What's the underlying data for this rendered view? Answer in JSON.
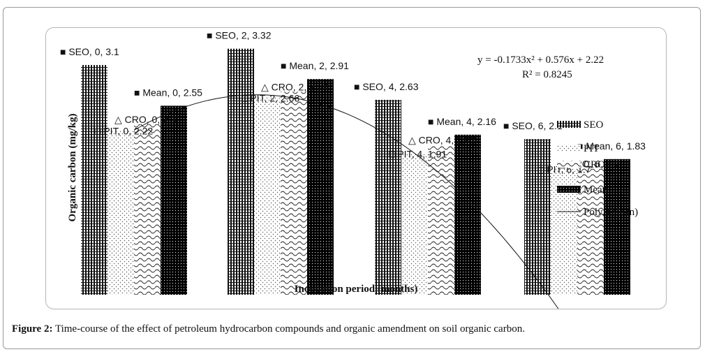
{
  "chart_data": {
    "type": "bar",
    "categories": [
      "0",
      "2",
      "4",
      "6"
    ],
    "series": [
      {
        "name": "SEO",
        "values": [
          3.1,
          3.32,
          2.63,
          2.1
        ]
      },
      {
        "name": "PIT",
        "values": [
          2.22,
          2.66,
          1.91,
          1.7
        ]
      },
      {
        "name": "CRO",
        "values": [
          2.3,
          2.74,
          2.02,
          1.7
        ]
      },
      {
        "name": "Mean",
        "values": [
          2.55,
          2.91,
          2.16,
          1.83
        ]
      }
    ],
    "trendline": {
      "name": "Poly. (Mean)",
      "equation": "y = -0.1733x² + 0.576x + 2.22",
      "r_squared": "R² = 0.8245",
      "coefficients": [
        -0.1733,
        0.576,
        2.22
      ]
    },
    "data_labels": {
      "SEO": [
        "SEO, 0, 3.1",
        "SEO, 2, 3.32",
        "SEO, 4, 2.63",
        "SEO, 6, 2.1"
      ],
      "PIT": [
        "PIT, 0, 2.22",
        "PIT, 2, 2.66",
        "PIT, 4, 1.91",
        "PIT, 6, 1.7"
      ],
      "CRO": [
        "CRO, 0, 2.3",
        "CRO, 2, 2.74",
        "CRO, 4, 2.02",
        "CRO, 6, 1.7"
      ],
      "Mean": [
        "Mean, 0, 2.55",
        "Mean, 2, 2.91",
        "Mean, 4, 2.16",
        "Mean, 6, 1.83"
      ]
    },
    "xlabel": "Incubation period (months)",
    "ylabel": "Organic carbon (mg/kg)",
    "ylim": [
      0,
      3.6
    ],
    "legend": [
      "SEO",
      "PIT",
      "CRO",
      "Mean",
      "Poly. (Mean)"
    ],
    "legend_position": "right",
    "grid": false
  },
  "caption": {
    "label": "Figure 2:",
    "text": " Time-course of the effect of petroleum hydrocarbon compounds and organic amendment on soil organic carbon."
  }
}
